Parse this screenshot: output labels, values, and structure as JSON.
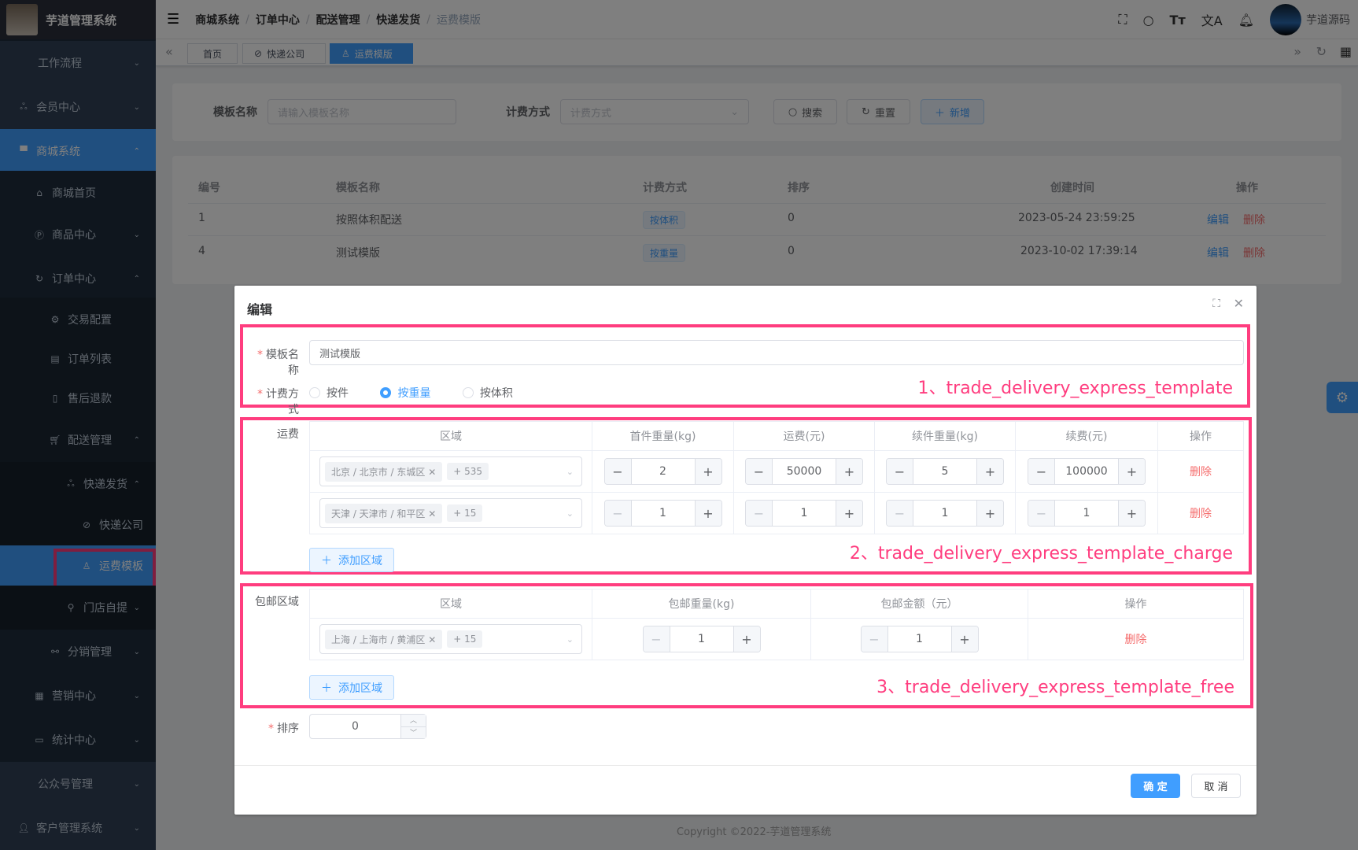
{
  "app": {
    "title": "芋道管理系统",
    "user": "芋道源码"
  },
  "sidebar": {
    "items": [
      {
        "label": "工作流程"
      },
      {
        "label": "会员中心"
      },
      {
        "label": "商城系统"
      },
      {
        "label": "商城首页"
      },
      {
        "label": "商品中心"
      },
      {
        "label": "订单中心"
      },
      {
        "label": "交易配置"
      },
      {
        "label": "订单列表"
      },
      {
        "label": "售后退款"
      },
      {
        "label": "配送管理"
      },
      {
        "label": "快递发货"
      },
      {
        "label": "快递公司"
      },
      {
        "label": "运费模板"
      },
      {
        "label": "门店自提"
      },
      {
        "label": "分销管理"
      },
      {
        "label": "营销中心"
      },
      {
        "label": "统计中心"
      },
      {
        "label": "公众号管理"
      },
      {
        "label": "客户管理系统"
      }
    ]
  },
  "breadcrumb": [
    "商城系统",
    "订单中心",
    "配送管理",
    "快递发货",
    "运费模版"
  ],
  "tags": [
    "首页",
    "快递公司",
    "运费模版"
  ],
  "search": {
    "name_label": "模板名称",
    "name_placeholder": "请输入模板名称",
    "charge_label": "计费方式",
    "charge_placeholder": "计费方式",
    "search": "搜索",
    "reset": "重置",
    "add": "新增"
  },
  "table": {
    "headers": [
      "编号",
      "模板名称",
      "计费方式",
      "排序",
      "创建时间",
      "操作"
    ],
    "rows": [
      {
        "id": "1",
        "name": "按照体积配送",
        "mode": "按体积",
        "sort": "0",
        "time": "2023-05-24 23:59:25"
      },
      {
        "id": "4",
        "name": "测试模版",
        "mode": "按重量",
        "sort": "0",
        "time": "2023-10-02 17:39:14"
      }
    ],
    "edit": "编辑",
    "delete": "删除"
  },
  "footer": "Copyright ©2022-芋道管理系统",
  "dialog": {
    "title": "编辑",
    "name_label": "模板名称",
    "name_value": "测试模版",
    "mode_label": "计费方式",
    "modes": [
      "按件",
      "按重量",
      "按体积"
    ],
    "mode_selected": "按重量",
    "charge_label": "运费",
    "charge_headers": [
      "区域",
      "首件重量(kg)",
      "运费(元)",
      "续件重量(kg)",
      "续费(元)",
      "操作"
    ],
    "charge_rows": [
      {
        "area": "北京 / 北京市 / 东城区",
        "more": "+ 535",
        "start": "2",
        "price": "50000",
        "extra": "5",
        "extra_price": "100000"
      },
      {
        "area": "天津 / 天津市 / 和平区",
        "more": "+ 15",
        "start": "1",
        "price": "1",
        "extra": "1",
        "extra_price": "1"
      }
    ],
    "free_label": "包邮区域",
    "free_headers": [
      "区域",
      "包邮重量(kg)",
      "包邮金额（元）",
      "操作"
    ],
    "free_rows": [
      {
        "area": "上海 / 上海市 / 黄浦区",
        "more": "+ 15",
        "weight": "1",
        "amount": "1"
      }
    ],
    "add_area": "添加区域",
    "delete": "删除",
    "sort_label": "排序",
    "sort_value": "0",
    "confirm": "确 定",
    "cancel": "取 消"
  },
  "annotations": [
    "1、trade_delivery_express_template",
    "2、trade_delivery_express_template_charge",
    "3、trade_delivery_express_template_free"
  ],
  "colors": {
    "primary": "#409eff",
    "danger": "#f56c6c",
    "annotation": "#ff3d7f"
  }
}
